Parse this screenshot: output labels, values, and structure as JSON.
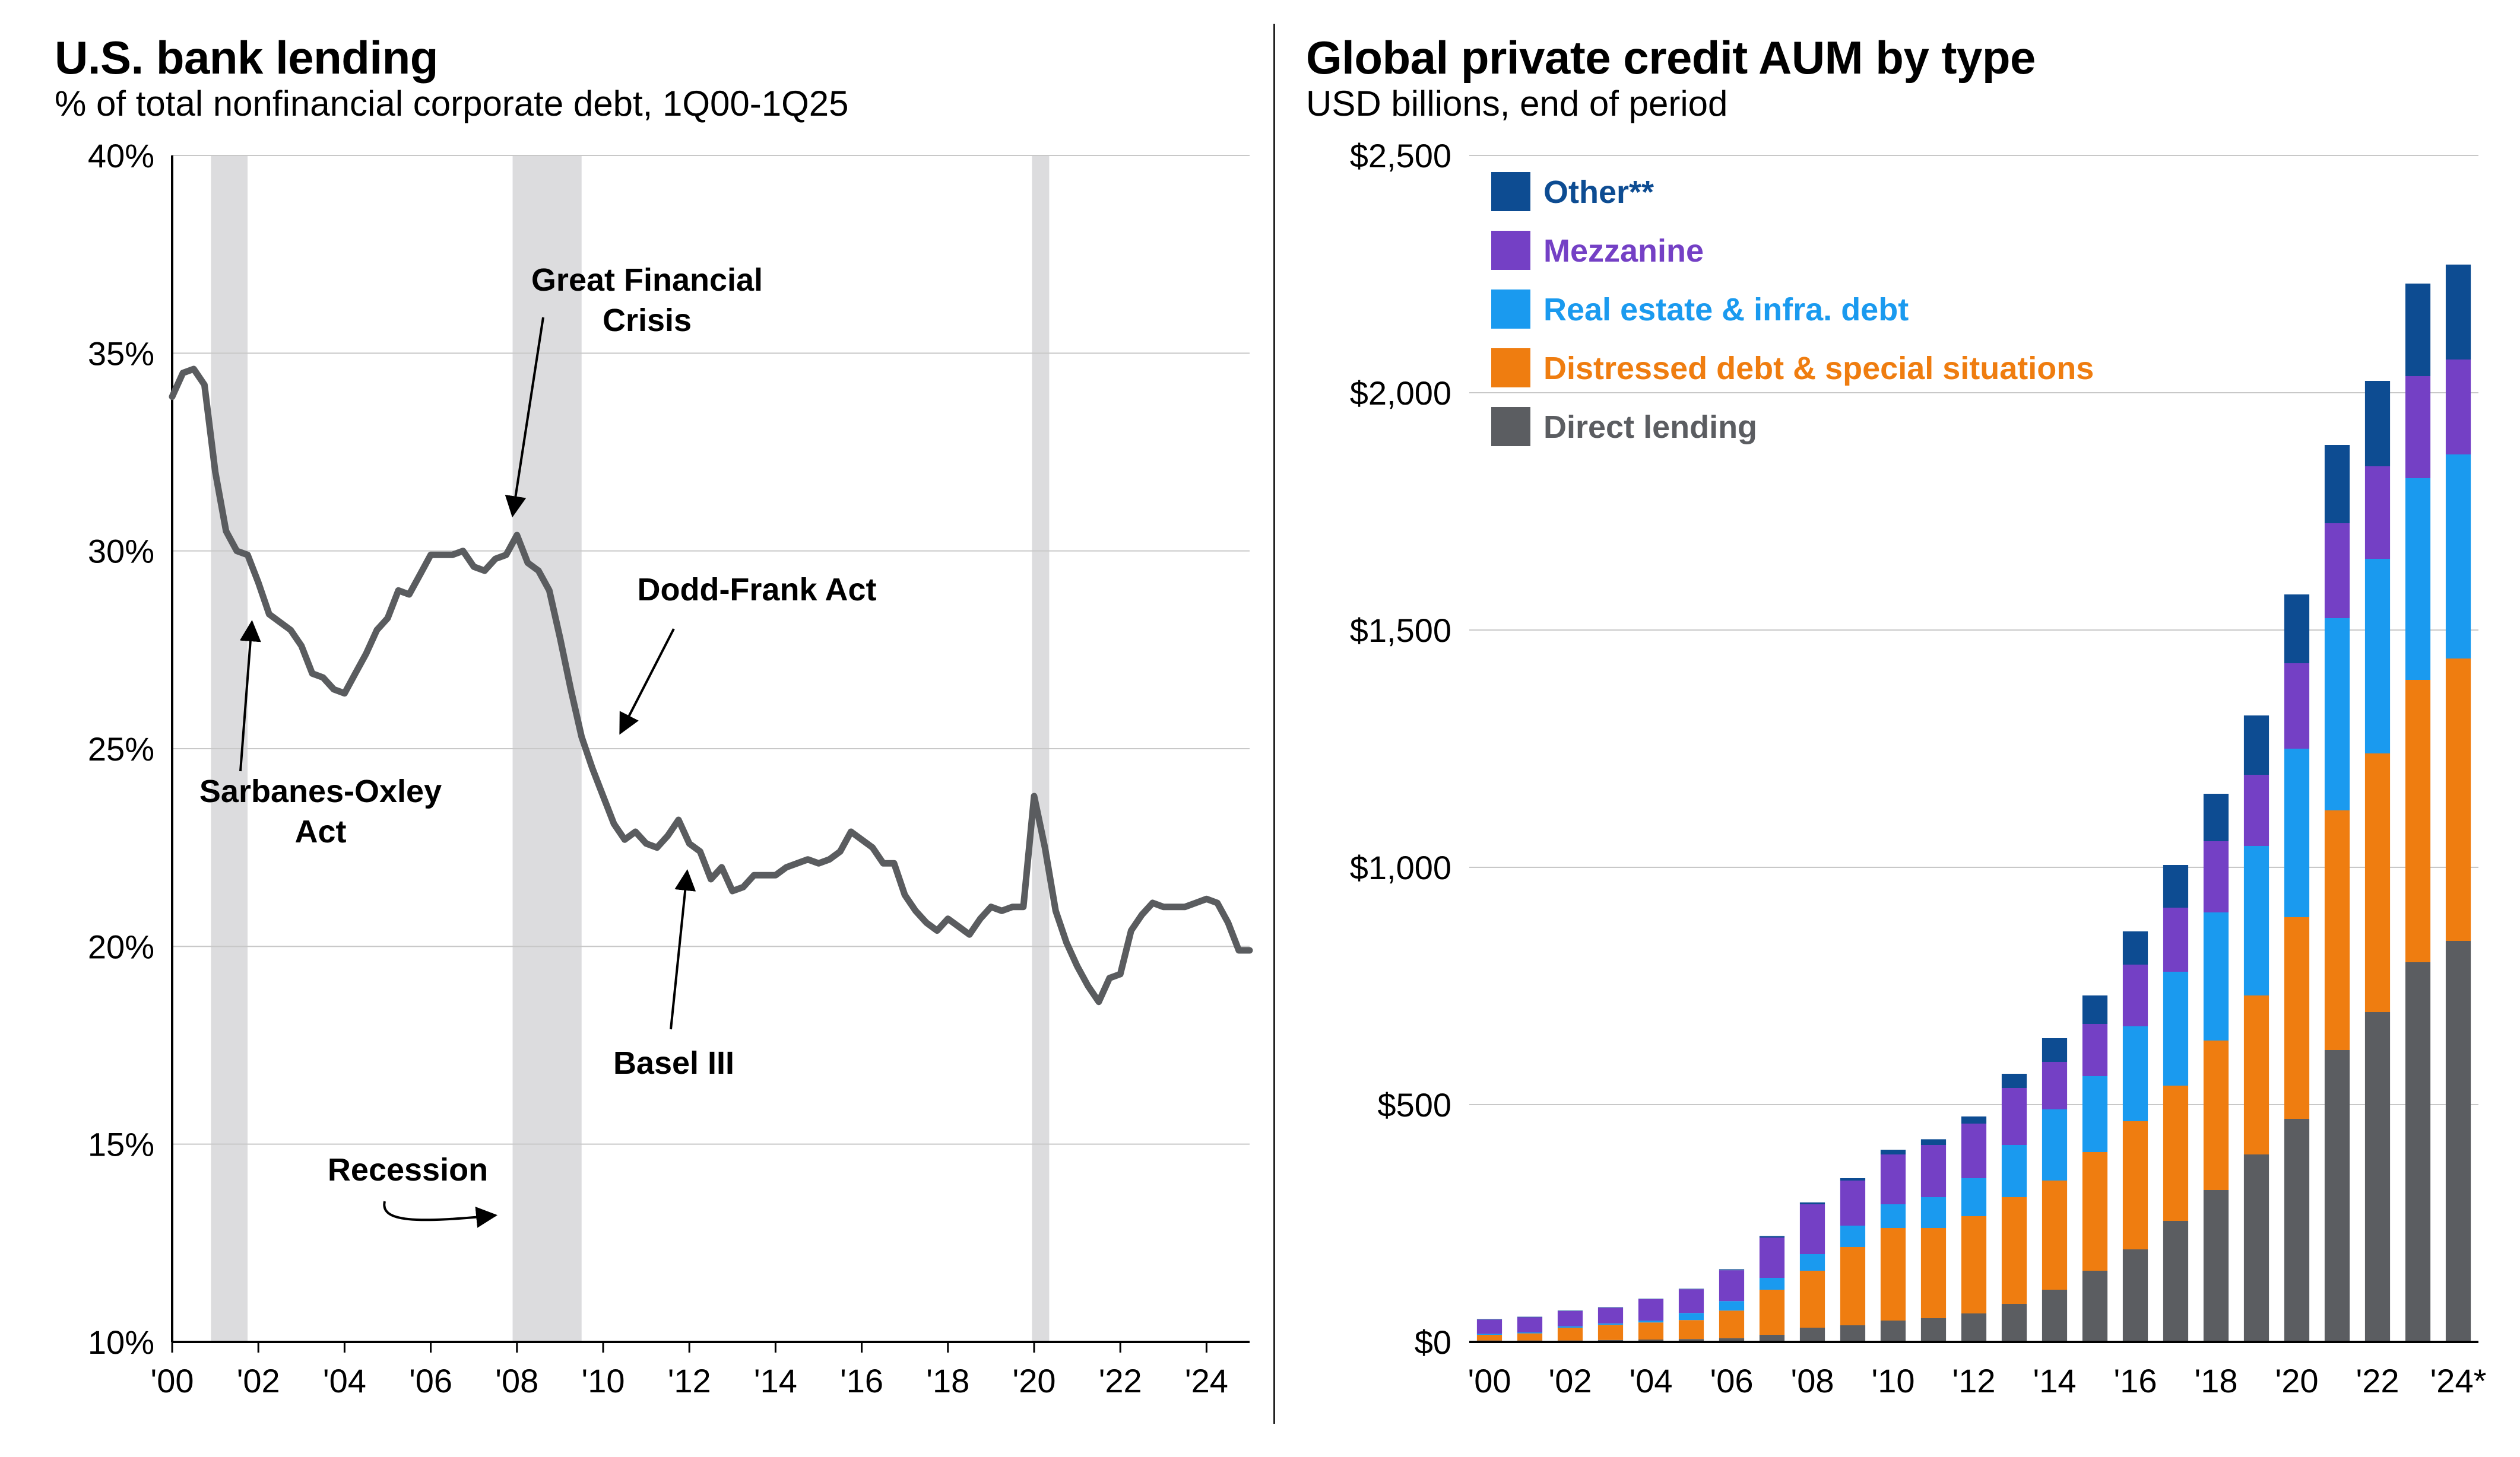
{
  "chart_data": [
    {
      "type": "line",
      "title": "U.S. bank lending",
      "subtitle": "% of total nonfinancial corporate debt, 1Q00-1Q25",
      "xlabel": "",
      "ylabel": "",
      "xlim": [
        2000,
        2025
      ],
      "ylim": [
        10,
        40
      ],
      "yticks": [
        {
          "value": 40,
          "label": "40%"
        },
        {
          "value": 35,
          "label": "35%"
        },
        {
          "value": 30,
          "label": "30%"
        },
        {
          "value": 25,
          "label": "25%"
        },
        {
          "value": 20,
          "label": "20%"
        },
        {
          "value": 15,
          "label": "15%"
        },
        {
          "value": 10,
          "label": "10%"
        }
      ],
      "xticks": [
        {
          "value": 2000,
          "label": "'00"
        },
        {
          "value": 2002,
          "label": "'02"
        },
        {
          "value": 2004,
          "label": "'04"
        },
        {
          "value": 2006,
          "label": "'06"
        },
        {
          "value": 2008,
          "label": "'08"
        },
        {
          "value": 2010,
          "label": "'10"
        },
        {
          "value": 2012,
          "label": "'12"
        },
        {
          "value": 2014,
          "label": "'14"
        },
        {
          "value": 2016,
          "label": "'16"
        },
        {
          "value": 2018,
          "label": "'18"
        },
        {
          "value": 2020,
          "label": "'20"
        },
        {
          "value": 2022,
          "label": "'22"
        },
        {
          "value": 2024,
          "label": "'24"
        }
      ],
      "grid": true,
      "line_color": "#5a5c5f",
      "recession_color": "#dcdcde",
      "recessions": [
        [
          2000.9,
          2001.75
        ],
        [
          2007.9,
          2009.5
        ],
        [
          2019.95,
          2020.35
        ]
      ],
      "series": [
        {
          "name": "Bank lending share",
          "x": [
            2000.0,
            2000.25,
            2000.5,
            2000.75,
            2001.0,
            2001.25,
            2001.5,
            2001.75,
            2002.0,
            2002.25,
            2002.5,
            2002.75,
            2003.0,
            2003.25,
            2003.5,
            2003.75,
            2004.0,
            2004.25,
            2004.5,
            2004.75,
            2005.0,
            2005.25,
            2005.5,
            2005.75,
            2006.0,
            2006.25,
            2006.5,
            2006.75,
            2007.0,
            2007.25,
            2007.5,
            2007.75,
            2008.0,
            2008.25,
            2008.5,
            2008.75,
            2009.0,
            2009.25,
            2009.5,
            2009.75,
            2010.0,
            2010.25,
            2010.5,
            2010.75,
            2011.0,
            2011.25,
            2011.5,
            2011.75,
            2012.0,
            2012.25,
            2012.5,
            2012.75,
            2013.0,
            2013.25,
            2013.5,
            2013.75,
            2014.0,
            2014.25,
            2014.5,
            2014.75,
            2015.0,
            2015.25,
            2015.5,
            2015.75,
            2016.0,
            2016.25,
            2016.5,
            2016.75,
            2017.0,
            2017.25,
            2017.5,
            2017.75,
            2018.0,
            2018.25,
            2018.5,
            2018.75,
            2019.0,
            2019.25,
            2019.5,
            2019.75,
            2020.0,
            2020.25,
            2020.5,
            2020.75,
            2021.0,
            2021.25,
            2021.5,
            2021.75,
            2022.0,
            2022.25,
            2022.5,
            2022.75,
            2023.0,
            2023.25,
            2023.5,
            2023.75,
            2024.0,
            2024.25,
            2024.5,
            2024.75,
            2025.0
          ],
          "values": [
            33.9,
            34.5,
            34.6,
            34.2,
            32.0,
            30.5,
            30.0,
            29.9,
            29.2,
            28.4,
            28.2,
            28.0,
            27.6,
            26.9,
            26.8,
            26.5,
            26.4,
            26.9,
            27.4,
            28.0,
            28.3,
            29.0,
            28.9,
            29.4,
            29.9,
            29.9,
            29.9,
            30.0,
            29.6,
            29.5,
            29.8,
            29.9,
            30.4,
            29.7,
            29.5,
            29.0,
            27.8,
            26.5,
            25.3,
            24.5,
            23.8,
            23.1,
            22.7,
            22.9,
            22.6,
            22.5,
            22.8,
            23.2,
            22.6,
            22.4,
            21.7,
            22.0,
            21.4,
            21.5,
            21.8,
            21.8,
            21.8,
            22.0,
            22.1,
            22.2,
            22.1,
            22.2,
            22.4,
            22.9,
            22.7,
            22.5,
            22.1,
            22.1,
            21.3,
            20.9,
            20.6,
            20.4,
            20.7,
            20.5,
            20.3,
            20.7,
            21.0,
            20.9,
            21.0,
            21.0,
            23.8,
            22.5,
            20.9,
            20.1,
            19.5,
            19.0,
            18.6,
            19.2,
            19.3,
            20.4,
            20.8,
            21.1,
            21.0,
            21.0,
            21.0,
            21.1,
            21.2,
            21.1,
            20.6,
            19.9,
            19.9
          ]
        }
      ],
      "annotations": [
        {
          "text": "Great Financial\nCrisis",
          "points_to": [
            2007.9,
            30.9
          ]
        },
        {
          "text": "Dodd-Frank Act",
          "points_to": [
            2010.4,
            25.4
          ]
        },
        {
          "text": "Sarbanes-Oxley\nAct",
          "points_to": [
            2001.85,
            28.2
          ]
        },
        {
          "text": "Basel III",
          "points_to": [
            2011.95,
            21.9
          ]
        },
        {
          "text": "Recession",
          "points_to": [
            2007.5,
            13.2
          ]
        }
      ]
    },
    {
      "type": "bar",
      "stacked": true,
      "title": "Global private credit AUM by type",
      "subtitle": "USD billions, end of period",
      "xlabel": "",
      "ylabel": "",
      "ylim": [
        0,
        2500
      ],
      "yticks": [
        {
          "value": 2500,
          "label": "$2,500"
        },
        {
          "value": 2000,
          "label": "$2,000"
        },
        {
          "value": 1500,
          "label": "$1,500"
        },
        {
          "value": 1000,
          "label": "$1,000"
        },
        {
          "value": 500,
          "label": "$500"
        },
        {
          "value": 0,
          "label": "$0"
        }
      ],
      "grid": true,
      "legend_position": "top-left",
      "categories": [
        "'00",
        "'01",
        "'02",
        "'03",
        "'04",
        "'05",
        "'06",
        "'07",
        "'08",
        "'09",
        "'10",
        "'11",
        "'12",
        "'13",
        "'14",
        "'15",
        "'16",
        "'17",
        "'18",
        "'19",
        "'20",
        "'21",
        "'22",
        "'23",
        "'24*"
      ],
      "visible_tick_labels": [
        "'00",
        "'02",
        "'04",
        "'06",
        "'08",
        "'10",
        "'12",
        "'14",
        "'16",
        "'18",
        "'20",
        "'22",
        "'24*"
      ],
      "series": [
        {
          "name": "Direct lending",
          "color": "#5b5d61",
          "values": [
            3,
            3,
            3,
            4,
            5,
            6,
            8,
            15,
            30,
            35,
            45,
            50,
            60,
            80,
            110,
            150,
            195,
            255,
            320,
            395,
            470,
            615,
            695,
            800,
            845
          ]
        },
        {
          "name": "Distressed debt & special situations",
          "color": "#ef7d10",
          "values": [
            12,
            15,
            27,
            32,
            36,
            40,
            58,
            95,
            120,
            165,
            195,
            190,
            205,
            225,
            230,
            250,
            270,
            285,
            315,
            335,
            425,
            505,
            545,
            595,
            595
          ]
        },
        {
          "name": "Real estate & infra. debt",
          "color": "#1a9aef",
          "values": [
            2,
            2,
            3,
            3,
            4,
            15,
            20,
            25,
            35,
            45,
            50,
            65,
            80,
            110,
            150,
            160,
            200,
            240,
            270,
            315,
            355,
            405,
            410,
            425,
            430
          ]
        },
        {
          "name": "Mezzanine",
          "color": "#7440c5",
          "values": [
            30,
            32,
            32,
            33,
            45,
            50,
            65,
            85,
            105,
            95,
            105,
            110,
            115,
            120,
            100,
            110,
            130,
            135,
            150,
            150,
            180,
            200,
            195,
            215,
            200
          ]
        },
        {
          "name": "Other**",
          "color": "#0d4c92",
          "values": [
            1,
            1,
            1,
            1,
            1,
            1,
            2,
            3,
            4,
            5,
            10,
            12,
            15,
            30,
            50,
            60,
            70,
            90,
            100,
            125,
            145,
            165,
            180,
            195,
            200
          ]
        }
      ]
    }
  ]
}
